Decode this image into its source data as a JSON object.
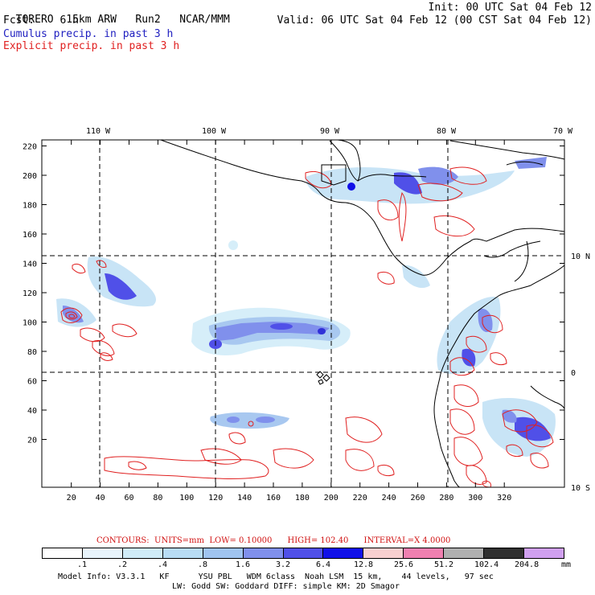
{
  "header": {
    "model": "TORERO",
    "resolution": "15km ARW",
    "run": "Run2",
    "org": "NCAR/MMM",
    "init": "Init: 00 UTC Sat 04 Feb 12",
    "fcst_label": "Fcst:",
    "fcst_value": "6 h",
    "valid": "Valid: 06 UTC Sat 04 Feb 12 (00 CST Sat 04 Feb 12)"
  },
  "legend_lines": {
    "cumulus": "Cumulus precip. in past 3 h",
    "explicit": "Explicit precip. in past 3 h",
    "cumulus_color": "#2020c0",
    "explicit_color": "#e02020"
  },
  "map": {
    "top_lon_labels": [
      "110 W",
      "100 W",
      "90 W",
      "80 W",
      "70 W"
    ],
    "right_lat_labels": [
      "10 N",
      "0",
      "10 S"
    ],
    "left_y_ticks": [
      "220",
      "200",
      "180",
      "160",
      "140",
      "120",
      "100",
      "80",
      "60",
      "40",
      "20"
    ],
    "bottom_x_ticks": [
      "20",
      "40",
      "60",
      "80",
      "100",
      "120",
      "140",
      "160",
      "180",
      "200",
      "220",
      "240",
      "260",
      "280",
      "300",
      "320"
    ]
  },
  "contours": {
    "label": "CONTOURS:",
    "units": "UNITS=mm",
    "low": "LOW= 0.10000",
    "high": "HIGH= 102.40",
    "interval": "INTERVAL=X 4.0000"
  },
  "colorscale": {
    "labels": [
      ".1",
      ".2",
      ".4",
      ".8",
      "1.6",
      "3.2",
      "6.4",
      "12.8",
      "25.6",
      "51.2",
      "102.4",
      "204.8"
    ],
    "unit": "mm",
    "colors": [
      "#ffffff",
      "#e8f4fc",
      "#d0ecf8",
      "#b8dcf4",
      "#a0c4f0",
      "#8090ec",
      "#5050e8",
      "#1010e8",
      "#f8d0d0",
      "#f080b0",
      "#b0b0b0",
      "#303030",
      "#d0a0f0"
    ]
  },
  "footer": {
    "line1": "Model Info: V3.3.1   KF      YSU PBL   WDM 6class  Noah LSM  15 km,    44 levels,   97 sec",
    "line2": "LW: Godd SW: Goddard DIFF: simple KM: 2D Smagor"
  }
}
